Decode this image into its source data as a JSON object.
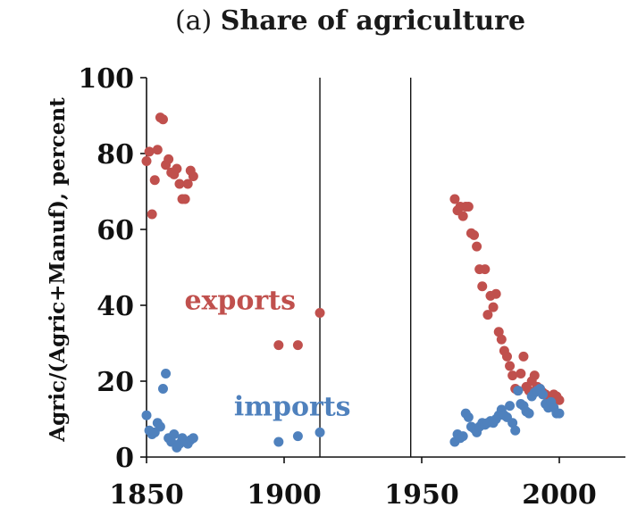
{
  "chart_data": {
    "type": "scatter",
    "title_prefix": "(a)",
    "title": "Share of agriculture",
    "xlabel": "",
    "ylabel": "Agric/(Agric+Manuf), percent",
    "xlim": [
      1850,
      2025
    ],
    "ylim": [
      0,
      100
    ],
    "x_ticks": [
      1850,
      1900,
      1950,
      2000
    ],
    "y_ticks": [
      0,
      20,
      40,
      60,
      80,
      100
    ],
    "grid": false,
    "vertical_lines": [
      1913,
      1946
    ],
    "series": [
      {
        "name": "exports",
        "color": "#c0504d",
        "points": [
          [
            1850,
            78
          ],
          [
            1851,
            80.5
          ],
          [
            1852,
            64
          ],
          [
            1853,
            73
          ],
          [
            1854,
            81
          ],
          [
            1855,
            89.5
          ],
          [
            1856,
            89
          ],
          [
            1857,
            77
          ],
          [
            1858,
            78.5
          ],
          [
            1859,
            75
          ],
          [
            1860,
            74.5
          ],
          [
            1861,
            76
          ],
          [
            1862,
            72
          ],
          [
            1863,
            68
          ],
          [
            1864,
            68
          ],
          [
            1865,
            72
          ],
          [
            1866,
            75.5
          ],
          [
            1867,
            74
          ],
          [
            1898,
            29.5
          ],
          [
            1905,
            29.5
          ],
          [
            1913,
            38
          ],
          [
            1962,
            68
          ],
          [
            1963,
            65
          ],
          [
            1964,
            66
          ],
          [
            1965,
            63.5
          ],
          [
            1966,
            66
          ],
          [
            1967,
            66
          ],
          [
            1968,
            59
          ],
          [
            1969,
            58.5
          ],
          [
            1970,
            55.5
          ],
          [
            1971,
            49.5
          ],
          [
            1972,
            45
          ],
          [
            1973,
            49.5
          ],
          [
            1974,
            37.5
          ],
          [
            1975,
            42.5
          ],
          [
            1976,
            39.5
          ],
          [
            1977,
            43
          ],
          [
            1978,
            33
          ],
          [
            1979,
            31
          ],
          [
            1980,
            28
          ],
          [
            1981,
            26.5
          ],
          [
            1982,
            24
          ],
          [
            1983,
            21.5
          ],
          [
            1984,
            18
          ],
          [
            1985,
            17.5
          ],
          [
            1986,
            22
          ],
          [
            1987,
            26.5
          ],
          [
            1988,
            18.5
          ],
          [
            1989,
            17.5
          ],
          [
            1990,
            20
          ],
          [
            1991,
            21.5
          ],
          [
            1992,
            18.5
          ],
          [
            1993,
            18
          ],
          [
            1994,
            17
          ],
          [
            1995,
            16.5
          ],
          [
            1996,
            15
          ],
          [
            1997,
            16
          ],
          [
            1998,
            16.5
          ],
          [
            1999,
            16
          ],
          [
            2000,
            15
          ]
        ]
      },
      {
        "name": "imports",
        "color": "#4f81bd",
        "points": [
          [
            1850,
            11
          ],
          [
            1851,
            7
          ],
          [
            1852,
            6
          ],
          [
            1853,
            6.5
          ],
          [
            1854,
            9
          ],
          [
            1855,
            8
          ],
          [
            1856,
            18
          ],
          [
            1857,
            22
          ],
          [
            1858,
            5
          ],
          [
            1859,
            4
          ],
          [
            1860,
            6
          ],
          [
            1861,
            2.5
          ],
          [
            1862,
            3.5
          ],
          [
            1863,
            5
          ],
          [
            1864,
            4
          ],
          [
            1865,
            3.5
          ],
          [
            1866,
            4.5
          ],
          [
            1867,
            5
          ],
          [
            1898,
            4
          ],
          [
            1905,
            5.5
          ],
          [
            1913,
            6.5
          ],
          [
            1962,
            4
          ],
          [
            1963,
            6
          ],
          [
            1964,
            5
          ],
          [
            1965,
            5.5
          ],
          [
            1966,
            11.5
          ],
          [
            1967,
            10.5
          ],
          [
            1968,
            8
          ],
          [
            1969,
            7.5
          ],
          [
            1970,
            6.5
          ],
          [
            1971,
            8
          ],
          [
            1972,
            9
          ],
          [
            1973,
            8.5
          ],
          [
            1974,
            9
          ],
          [
            1975,
            9.5
          ],
          [
            1976,
            9
          ],
          [
            1977,
            10
          ],
          [
            1978,
            11
          ],
          [
            1979,
            12.5
          ],
          [
            1980,
            11
          ],
          [
            1981,
            10.5
          ],
          [
            1982,
            13.5
          ],
          [
            1983,
            9
          ],
          [
            1984,
            7
          ],
          [
            1985,
            17.5
          ],
          [
            1986,
            14
          ],
          [
            1987,
            13.5
          ],
          [
            1988,
            12
          ],
          [
            1989,
            11.5
          ],
          [
            1990,
            16
          ],
          [
            1991,
            17
          ],
          [
            1992,
            17.5
          ],
          [
            1993,
            18
          ],
          [
            1994,
            16.5
          ],
          [
            1995,
            14
          ],
          [
            1996,
            13
          ],
          [
            1997,
            14.5
          ],
          [
            1998,
            13
          ],
          [
            1999,
            11.5
          ],
          [
            2000,
            11.5
          ]
        ]
      }
    ],
    "series_labels": [
      {
        "text": "exports",
        "x": 1884,
        "y": 39,
        "color": "#c0504d"
      },
      {
        "text": "imports",
        "x": 1903,
        "y": 11,
        "color": "#4f81bd"
      }
    ]
  }
}
